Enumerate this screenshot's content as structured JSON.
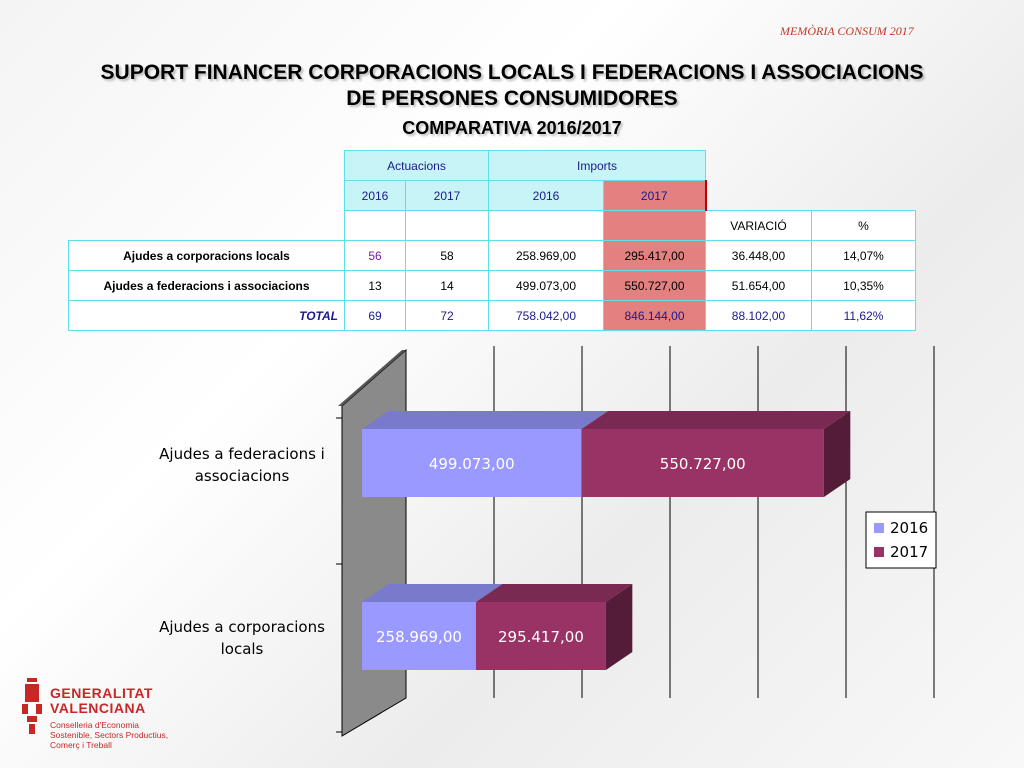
{
  "header": {
    "tag": "MEMÒRIA CONSUM 2017",
    "title_line1": "SUPORT FINANCER CORPORACIONS LOCALS I FEDERACIONS I ASSOCIACIONS",
    "title_line2": "DE PERSONES CONSUMIDORES",
    "subtitle": "COMPARATIVA 2016/2017"
  },
  "table": {
    "group_actuacions": "Actuacions",
    "group_imports": "Imports",
    "years": [
      "2016",
      "2017",
      "2016",
      "2017"
    ],
    "variacio_label": "VARIACIÓ",
    "pct_label": "%",
    "rows": [
      {
        "label": "Ajudes a corporacions locals",
        "act2016": "56",
        "act2017": "58",
        "imp2016": "258.969,00",
        "imp2017": "295.417,00",
        "variacio": "36.448,00",
        "pct": "14,07%"
      },
      {
        "label": "Ajudes a federacions i associacions",
        "act2016": "13",
        "act2017": "14",
        "imp2016": "499.073,00",
        "imp2017": "550.727,00",
        "variacio": "51.654,00",
        "pct": "10,35%"
      },
      {
        "label": "TOTAL",
        "act2016": "69",
        "act2017": "72",
        "imp2016": "758.042,00",
        "imp2017": "846.144,00",
        "variacio": "88.102,00",
        "pct": "11,62%"
      }
    ]
  },
  "chart_data": {
    "type": "bar",
    "orientation": "horizontal",
    "stacked": true,
    "three_d": true,
    "categories": [
      "Ajudes a federacions i associacions",
      "Ajudes a corporacions locals"
    ],
    "series": [
      {
        "name": "2016",
        "color": "#9999ff",
        "values": [
          499073.0,
          258969.0
        ],
        "labels": [
          "499.073,00",
          "258.969,00"
        ]
      },
      {
        "name": "2017",
        "color": "#993366",
        "values": [
          550727.0,
          295417.0
        ],
        "labels": [
          "550.727,00",
          "295.417,00"
        ]
      }
    ],
    "xlim": [
      0,
      1200000
    ],
    "grid": true,
    "legend": "right"
  },
  "logo": {
    "name_line1": "GENERALITAT",
    "name_line2": "VALENCIANA",
    "dept_line1": "Conselleria d'Economia",
    "dept_line2": "Sostenible, Sectors Productius,",
    "dept_line3": "Comerç i Treball"
  },
  "colors": {
    "header_cyan": "#c7f4f6",
    "pink_cell": "#e38080",
    "accent_red": "#c62828"
  }
}
